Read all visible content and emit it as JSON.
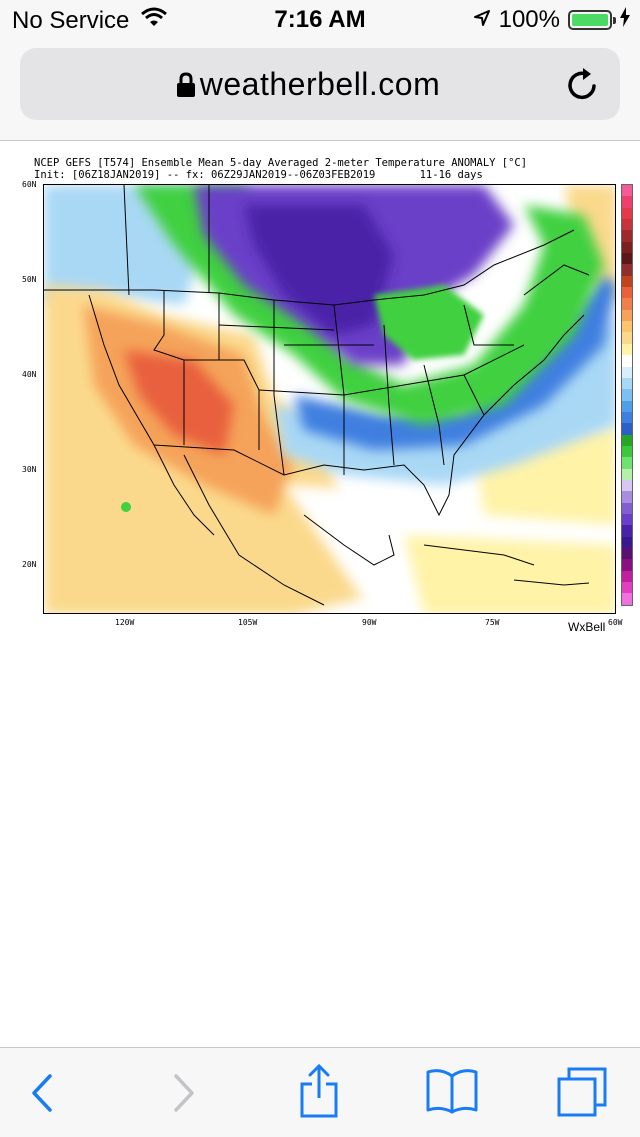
{
  "status": {
    "carrier": "No Service",
    "time": "7:16 AM",
    "battery": "100%",
    "icons": [
      "wifi-icon",
      "location-arrow-icon",
      "battery-icon",
      "charging-bolt-icon"
    ]
  },
  "browser": {
    "host": "weatherbell.com",
    "icons": [
      "lock-icon",
      "reload-icon"
    ]
  },
  "map": {
    "title_line1": "NCEP GEFS [T574] Ensemble Mean 5-day Averaged 2-meter Temperature ANOMALY [°C]",
    "title_line2": "Init: [06Z18JAN2019] -- fx: 06Z29JAN2019--06Z03FEB2019       11-16 days",
    "lat_labels": [
      "60N",
      "50N",
      "40N",
      "30N",
      "20N"
    ],
    "lon_labels": [
      "120W",
      "105W",
      "90W",
      "75W",
      "60W"
    ],
    "logo": "WxBell",
    "colors": {
      "warm_dark": "#e8603c",
      "warm": "#f5a35a",
      "warm_light": "#fbd98c",
      "neutral": "#ffffff",
      "cool_light": "#a9d8f5",
      "cool": "#3f7fe0",
      "green": "#40d040",
      "purple": "#6a3fc8",
      "purple_dark": "#4a22a8"
    },
    "colorbar": [
      "#f35b9a",
      "#ef3f6d",
      "#e3394a",
      "#c8323a",
      "#9c2a2a",
      "#7b1f1f",
      "#5a1818",
      "#8e2e2e",
      "#c0451e",
      "#e8603c",
      "#f0804a",
      "#f5a35a",
      "#fbc46e",
      "#fbd98c",
      "#fff3a8",
      "#ffffff",
      "#d8eefc",
      "#a9d8f5",
      "#7cc0f0",
      "#4f9ee8",
      "#3f7fe0",
      "#2e5fc8",
      "#26a626",
      "#3cc83c",
      "#6ee26e",
      "#b6f0a8",
      "#d6c8f0",
      "#a88de0",
      "#8060d0",
      "#6a3fc8",
      "#4a22a8",
      "#3a1890",
      "#5a1070",
      "#8a1080",
      "#c020a0",
      "#e040c0",
      "#f070e0"
    ]
  },
  "toolbar": {
    "buttons": [
      "back-icon",
      "forward-icon",
      "share-icon",
      "bookmarks-icon",
      "tabs-icon"
    ]
  }
}
